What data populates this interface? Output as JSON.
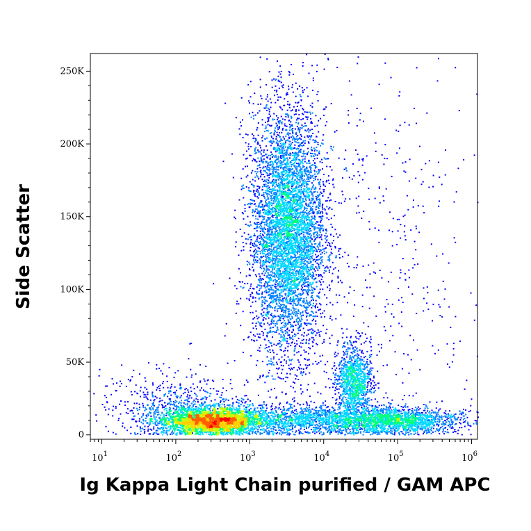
{
  "chart_data": {
    "type": "scatter",
    "style": "pseudocolor density dot plot",
    "title": "",
    "xlabel": "Ig Kappa Light Chain purified / GAM APC",
    "ylabel": "Side Scatter",
    "x_scale": "log",
    "xlim": [
      7,
      1200000
    ],
    "ylim": [
      -3000,
      262144
    ],
    "x_ticks": [
      {
        "value": 10,
        "base": "10",
        "exp": "1"
      },
      {
        "value": 100,
        "base": "10",
        "exp": "2"
      },
      {
        "value": 1000,
        "base": "10",
        "exp": "3"
      },
      {
        "value": 10000,
        "base": "10",
        "exp": "4"
      },
      {
        "value": 100000,
        "base": "10",
        "exp": "5"
      },
      {
        "value": 1000000,
        "base": "10",
        "exp": "6"
      }
    ],
    "y_ticks": [
      {
        "value": 0,
        "label": "0"
      },
      {
        "value": 50000,
        "label": "50K"
      },
      {
        "value": 100000,
        "label": "100K"
      },
      {
        "value": 150000,
        "label": "150K"
      },
      {
        "value": 200000,
        "label": "200K"
      },
      {
        "value": 250000,
        "label": "250K"
      }
    ],
    "colormap": [
      "#0000ff",
      "#0080ff",
      "#00d8ff",
      "#00ff80",
      "#c8ff00",
      "#ffd000",
      "#ff6000",
      "#ff0000"
    ],
    "populations": [
      {
        "x_center": 3200,
        "y_center": 140000,
        "x_spread_decades": 0.25,
        "y_spread": 42000,
        "share": 0.36
      },
      {
        "x_center": 300,
        "y_center": 10000,
        "x_spread_decades": 0.35,
        "y_spread": 4500,
        "share": 0.3
      },
      {
        "x_center": 25000,
        "y_center": 37000,
        "x_spread_decades": 0.12,
        "y_spread": 12000,
        "share": 0.07
      },
      {
        "x_center": 15000,
        "y_center": 10500,
        "x_spread_decades": 0.9,
        "y_spread": 5000,
        "share": 0.15
      },
      {
        "x_center": 100000,
        "y_center": 10000,
        "x_spread_decades": 0.35,
        "y_spread": 4000,
        "share": 0.05
      },
      {
        "x_center": 100,
        "y_center": 20000,
        "x_spread_decades": 0.5,
        "y_spread": 12000,
        "share": 0.04
      },
      {
        "x_center": 50000,
        "y_center": 130000,
        "x_spread_decades": 0.8,
        "y_spread": 70000,
        "share": 0.03
      }
    ]
  }
}
